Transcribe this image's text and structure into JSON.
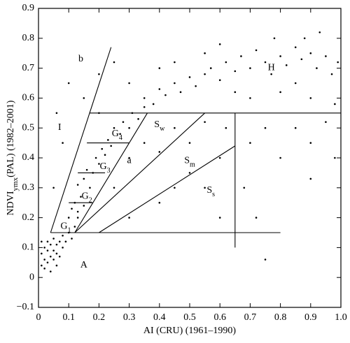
{
  "chart_data": {
    "type": "scatter",
    "x_label": "AI (CRU) (1961–1990)",
    "y_label": {
      "main": "NDVI",
      "sub": "ymx",
      "rest": "(PAL) (1982–2001)"
    },
    "xlim": [
      0,
      1
    ],
    "ylim": [
      -0.1,
      0.9
    ],
    "xticks": [
      0,
      0.1,
      0.2,
      0.3,
      0.4,
      0.5,
      0.6,
      0.7,
      0.8,
      0.9,
      {
        "value": 1,
        "label": "1.0"
      }
    ],
    "yticks": [
      {
        "value": -0.1,
        "label": "−0.1"
      },
      0,
      0.1,
      0.2,
      0.3,
      0.4,
      0.5,
      0.6,
      0.7,
      0.8,
      0.9
    ],
    "series": [
      {
        "color": "#000000",
        "x": [
          0.01,
          0.02,
          0.02,
          0.03,
          0.03,
          0.03,
          0.04,
          0.04,
          0.05,
          0.05,
          0.05,
          0.06,
          0.06,
          0.07,
          0.07,
          0.08,
          0.08,
          0.09,
          0.1,
          0.01,
          0.02,
          0.04,
          0.01,
          0.06,
          0.11,
          0.12,
          0.13,
          0.1,
          0.11,
          0.12,
          0.13,
          0.14,
          0.15,
          0.13,
          0.15,
          0.17,
          0.16,
          0.18,
          0.19,
          0.2,
          0.21,
          0.22,
          0.23,
          0.24,
          0.25,
          0.27,
          0.28,
          0.3,
          0.31,
          0.33,
          0.35,
          0.35,
          0.38,
          0.4,
          0.42,
          0.45,
          0.47,
          0.5,
          0.52,
          0.55,
          0.57,
          0.6,
          0.62,
          0.65,
          0.67,
          0.7,
          0.72,
          0.75,
          0.77,
          0.8,
          0.82,
          0.85,
          0.87,
          0.9,
          0.92,
          0.95,
          0.97,
          0.99,
          0.88,
          0.93,
          0.78,
          0.6,
          0.55,
          0.45,
          0.4,
          0.7,
          0.8,
          0.9,
          0.98,
          0.85,
          0.65,
          0.3,
          0.35,
          0.4,
          0.45,
          0.5,
          0.55,
          0.6,
          0.62,
          0.5,
          0.45,
          0.55,
          0.7,
          0.75,
          0.8,
          0.85,
          0.9,
          0.95,
          0.68,
          0.72,
          0.6,
          0.4,
          0.3,
          0.25,
          0.2,
          0.15,
          0.08,
          0.05,
          0.1,
          0.06,
          0.3,
          0.2,
          0.25,
          0.75,
          0.9,
          0.98
        ],
        "y": [
          0.08,
          0.06,
          0.1,
          0.05,
          0.09,
          0.12,
          0.07,
          0.11,
          0.06,
          0.09,
          0.13,
          0.08,
          0.11,
          0.07,
          0.12,
          0.1,
          0.14,
          0.12,
          0.15,
          0.04,
          0.03,
          0.02,
          0.12,
          0.04,
          0.13,
          0.17,
          0.2,
          0.2,
          0.23,
          0.25,
          0.22,
          0.27,
          0.24,
          0.31,
          0.33,
          0.3,
          0.36,
          0.35,
          0.4,
          0.38,
          0.43,
          0.41,
          0.46,
          0.44,
          0.5,
          0.48,
          0.52,
          0.5,
          0.55,
          0.53,
          0.57,
          0.6,
          0.58,
          0.63,
          0.61,
          0.65,
          0.62,
          0.67,
          0.64,
          0.68,
          0.7,
          0.66,
          0.72,
          0.69,
          0.74,
          0.7,
          0.76,
          0.72,
          0.68,
          0.74,
          0.71,
          0.77,
          0.73,
          0.75,
          0.7,
          0.74,
          0.68,
          0.72,
          0.8,
          0.82,
          0.8,
          0.78,
          0.75,
          0.72,
          0.7,
          0.6,
          0.62,
          0.6,
          0.58,
          0.65,
          0.62,
          0.4,
          0.45,
          0.42,
          0.5,
          0.45,
          0.52,
          0.4,
          0.5,
          0.35,
          0.3,
          0.3,
          0.45,
          0.5,
          0.4,
          0.5,
          0.45,
          0.52,
          0.3,
          0.2,
          0.2,
          0.25,
          0.2,
          0.3,
          0.55,
          0.6,
          0.45,
          0.3,
          0.65,
          0.55,
          0.65,
          0.68,
          0.72,
          0.06,
          0.33,
          0.4
        ]
      }
    ],
    "lines": [
      {
        "x": [
          0.04,
          0.24
        ],
        "y": [
          0.15,
          0.77
        ]
      },
      {
        "x": [
          0.17,
          1
        ],
        "y": [
          0.55,
          0.55
        ]
      },
      {
        "x": [
          0.04,
          0.8
        ],
        "y": [
          0.15,
          0.15
        ]
      },
      {
        "x": [
          0.65,
          0.65
        ],
        "y": [
          0.55,
          0.1
        ]
      },
      {
        "x": [
          0.12,
          0.36
        ],
        "y": [
          0.15,
          0.55
        ]
      },
      {
        "x": [
          0.12,
          0.55
        ],
        "y": [
          0.15,
          0.55
        ]
      },
      {
        "x": [
          0.2,
          0.65
        ],
        "y": [
          0.15,
          0.44
        ]
      },
      {
        "x": [
          0.16,
          0.3
        ],
        "y": [
          0.45,
          0.45
        ]
      },
      {
        "x": [
          0.13,
          0.22
        ],
        "y": [
          0.35,
          0.35
        ]
      },
      {
        "x": [
          0.1,
          0.18
        ],
        "y": [
          0.25,
          0.25
        ]
      }
    ],
    "annotations": [
      {
        "text": "b",
        "x": 0.14,
        "y": 0.73
      },
      {
        "text": "I",
        "x": 0.07,
        "y": 0.5
      },
      {
        "text": "G",
        "sub": "4",
        "x": 0.26,
        "y": 0.48
      },
      {
        "text": "S",
        "sub": "w",
        "x": 0.4,
        "y": 0.51
      },
      {
        "text": "G",
        "sub": "3",
        "x": 0.22,
        "y": 0.37
      },
      {
        "text": "a",
        "x": 0.3,
        "y": 0.39
      },
      {
        "text": "S",
        "sub": "m",
        "x": 0.5,
        "y": 0.39
      },
      {
        "text": "G",
        "sub": "2",
        "x": 0.16,
        "y": 0.27
      },
      {
        "text": "S",
        "sub": "s",
        "x": 0.57,
        "y": 0.29
      },
      {
        "text": "G",
        "sub": "1",
        "x": 0.09,
        "y": 0.17
      },
      {
        "text": "A",
        "x": 0.15,
        "y": 0.04
      },
      {
        "text": "H",
        "x": 0.77,
        "y": 0.7
      }
    ]
  }
}
